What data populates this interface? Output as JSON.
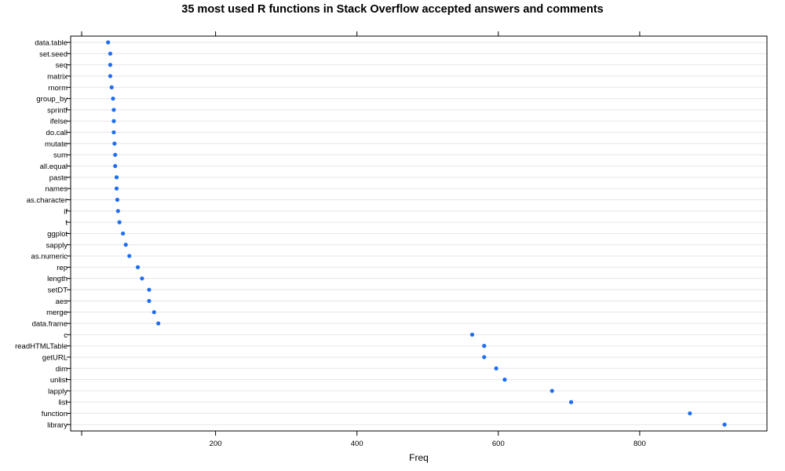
{
  "chart_data": {
    "type": "scatter",
    "title": "35 most used R functions in Stack Overflow accepted answers and comments",
    "xlabel": "Freq",
    "ylabel": "",
    "xlim": [
      -5,
      980
    ],
    "x_ticks": [
      200,
      400,
      600,
      800
    ],
    "grid": "horizontal",
    "categories": [
      "data.table",
      "set.seed",
      "seq",
      "matrix",
      "rnorm",
      "group_by",
      "sprintf",
      "ifelse",
      "do.call",
      "mutate",
      "sum",
      "all.equal",
      "paste",
      "names",
      "as.character",
      "if",
      "t",
      "ggplot",
      "sapply",
      "as.numeric",
      "rep",
      "length",
      "setDT",
      "aes",
      "merge",
      "data.frame",
      "c",
      "readHTMLTable",
      "getURL",
      "dim",
      "unlist",
      "lapply",
      "list",
      "function",
      "library"
    ],
    "values": [
      48,
      51,
      51,
      51,
      53,
      55,
      56,
      56,
      56,
      57,
      58,
      58,
      60,
      60,
      61,
      62,
      64,
      69,
      73,
      78,
      90,
      96,
      106,
      106,
      113,
      119,
      563,
      580,
      580,
      597,
      609,
      676,
      703,
      871,
      920
    ],
    "colors": {
      "point": "#1f6ef0",
      "grid": "#e6e6e6",
      "axis": "#000000"
    }
  }
}
